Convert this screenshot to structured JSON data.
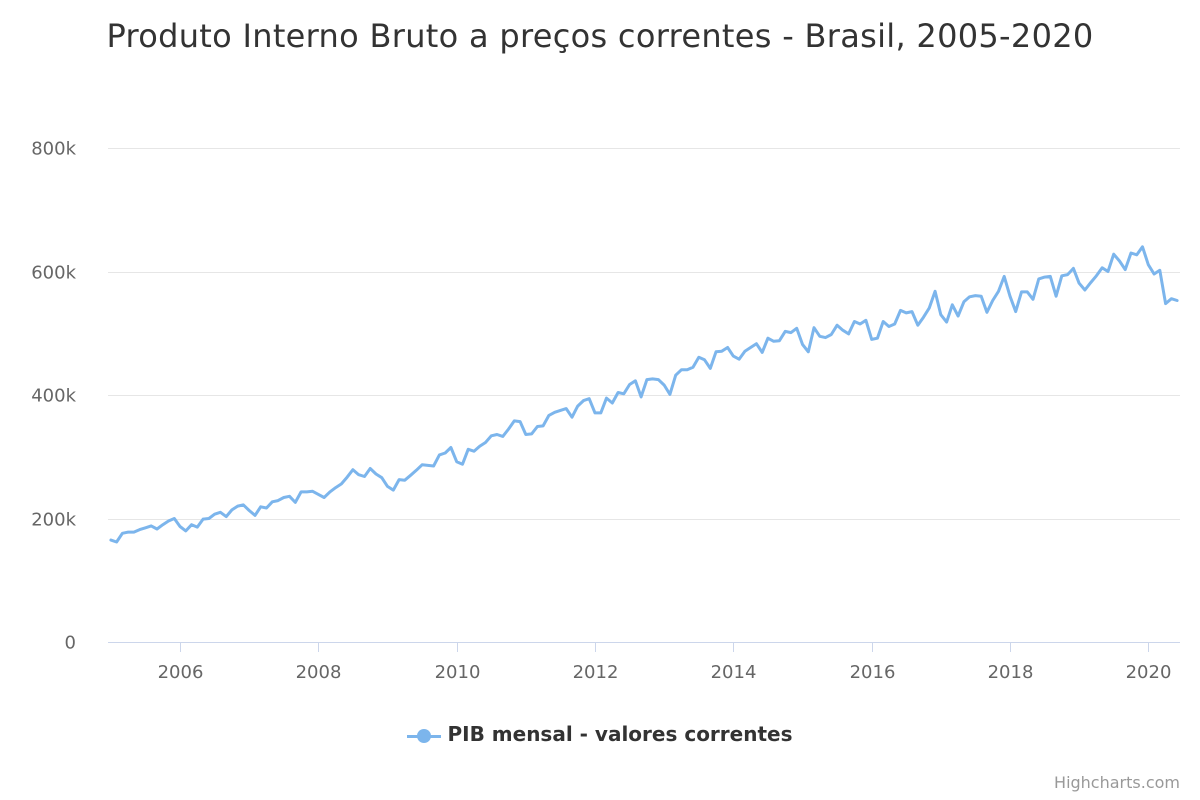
{
  "chart_data": {
    "type": "line",
    "title": "Produto Interno Bruto a preços correntes - Brasil, 2005-2020",
    "x_axis": {
      "type": "datetime",
      "range": [
        "2005-01",
        "2020-06"
      ],
      "tick_labels": [
        "2006",
        "2008",
        "2010",
        "2012",
        "2014",
        "2016",
        "2018",
        "2020"
      ]
    },
    "y_axis": {
      "range": [
        0,
        800000
      ],
      "tick_values": [
        0,
        200000,
        400000,
        600000,
        800000
      ],
      "tick_labels": [
        "0",
        "200k",
        "400k",
        "600k",
        "800k"
      ],
      "grid": true
    },
    "legend": {
      "position": "bottom-center",
      "items": [
        "PIB mensal - valores correntes"
      ]
    },
    "series": [
      {
        "name": "PIB mensal - valores correntes",
        "color": "#7cb5ec",
        "start": "2005-01",
        "frequency": "monthly",
        "values": [
          165000,
          162000,
          176000,
          178000,
          178000,
          182000,
          185000,
          188000,
          183000,
          190000,
          196000,
          200000,
          187000,
          180000,
          190000,
          186000,
          199000,
          200000,
          207000,
          210000,
          203000,
          214000,
          220000,
          222000,
          213000,
          205000,
          219000,
          217000,
          227000,
          229000,
          234000,
          236000,
          226000,
          243000,
          243000,
          244000,
          239000,
          234000,
          243000,
          250000,
          256000,
          267000,
          279000,
          271000,
          268000,
          281000,
          272000,
          266000,
          252000,
          246000,
          263000,
          262000,
          270000,
          278000,
          287000,
          286000,
          285000,
          303000,
          306000,
          315000,
          292000,
          288000,
          312000,
          309000,
          317000,
          323000,
          334000,
          336000,
          333000,
          345000,
          358000,
          357000,
          336000,
          337000,
          349000,
          350000,
          367000,
          372000,
          375000,
          378000,
          364000,
          382000,
          391000,
          394000,
          371000,
          371000,
          395000,
          387000,
          404000,
          402000,
          417000,
          423000,
          397000,
          425000,
          426000,
          425000,
          416000,
          401000,
          432000,
          441000,
          441000,
          445000,
          461000,
          457000,
          443000,
          470000,
          471000,
          477000,
          463000,
          458000,
          471000,
          477000,
          483000,
          469000,
          492000,
          487000,
          488000,
          503000,
          501000,
          508000,
          482000,
          470000,
          509000,
          495000,
          493000,
          498000,
          513000,
          505000,
          499000,
          519000,
          515000,
          521000,
          490000,
          492000,
          519000,
          511000,
          515000,
          537000,
          533000,
          535000,
          513000,
          526000,
          541000,
          568000,
          530000,
          518000,
          546000,
          528000,
          551000,
          559000,
          561000,
          560000,
          534000,
          553000,
          568000,
          592000,
          560000,
          535000,
          567000,
          567000,
          555000,
          588000,
          591000,
          592000,
          560000,
          593000,
          595000,
          605000,
          581000,
          570000,
          582000,
          593000,
          606000,
          600000,
          628000,
          617000,
          603000,
          630000,
          627000,
          640000,
          611000,
          596000,
          602000,
          548000,
          556000,
          553000
        ]
      }
    ]
  },
  "title": "Produto Interno Bruto a preços correntes - Brasil, 2005-2020",
  "legend_label": "PIB mensal - valores correntes",
  "credits": "Highcharts.com"
}
